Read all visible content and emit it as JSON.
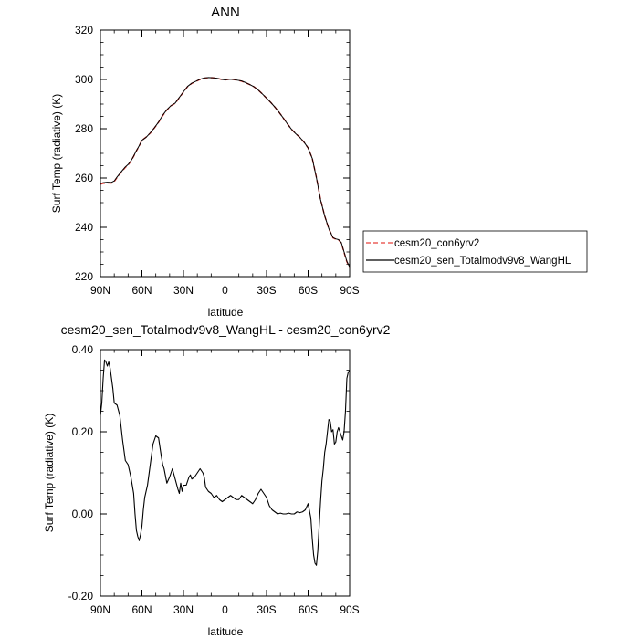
{
  "chart_data": [
    {
      "type": "line",
      "title": "ANN",
      "xlabel": "latitude",
      "ylabel": "Surf Temp (radiative) (K)",
      "xlim": [
        90,
        -90
      ],
      "ylim": [
        220,
        320
      ],
      "xticks": [
        90,
        60,
        30,
        0,
        -30,
        -60,
        -90
      ],
      "xtick_labels": [
        "90N",
        "60N",
        "30N",
        "0",
        "30S",
        "60S",
        "90S"
      ],
      "yticks": [
        220,
        240,
        260,
        280,
        300,
        320
      ],
      "ytick_labels": [
        "220",
        "240",
        "260",
        "280",
        "300",
        "320"
      ],
      "legend": {
        "placement": "right",
        "entries": [
          {
            "label": "cesm20_con6yrv2",
            "color": "#e8413a",
            "style": "dashed"
          },
          {
            "label": "cesm20_sen_Totalmodv9v8_WangHL",
            "color": "#000000",
            "style": "solid"
          }
        ]
      },
      "x": [
        90,
        88,
        85,
        82,
        80,
        78,
        75,
        72,
        70,
        68,
        66,
        64,
        62,
        60,
        57,
        54,
        51,
        48,
        45,
        42,
        39,
        36,
        33,
        30,
        27,
        24,
        21,
        18,
        15,
        12,
        9,
        6,
        3,
        0,
        -3,
        -6,
        -9,
        -12,
        -15,
        -18,
        -21,
        -24,
        -27,
        -30,
        -33,
        -36,
        -39,
        -42,
        -45,
        -48,
        -51,
        -54,
        -57,
        -60,
        -63,
        -66,
        -69,
        -72,
        -75,
        -78,
        -80,
        -82,
        -84,
        -86,
        -88,
        -90
      ],
      "series": [
        {
          "name": "cesm20_con6yrv2",
          "values": [
            257.5,
            257.8,
            258.0,
            257.9,
            258.6,
            260.2,
            262.3,
            264.3,
            265.3,
            266.8,
            268.8,
            271.0,
            273.0,
            275.3,
            276.6,
            278.2,
            280.3,
            282.6,
            285.3,
            287.6,
            289.3,
            290.3,
            292.6,
            294.9,
            297.1,
            298.4,
            299.2,
            300.0,
            300.5,
            300.7,
            300.7,
            300.5,
            300.1,
            299.8,
            300.1,
            300.0,
            299.7,
            299.3,
            298.6,
            297.9,
            297.0,
            295.7,
            294.1,
            292.4,
            290.7,
            288.8,
            286.7,
            284.4,
            282.0,
            279.8,
            278.0,
            276.5,
            274.6,
            272.2,
            268.0,
            260.3,
            251.3,
            244.6,
            239.4,
            235.7,
            235.2,
            234.9,
            233.6,
            229.8,
            226.0,
            223.6
          ]
        },
        {
          "name": "cesm20_sen_Totalmodv9v8_WangHL",
          "values": [
            257.7,
            258.1,
            258.3,
            258.2,
            258.8,
            260.4,
            262.5,
            264.5,
            265.5,
            266.9,
            268.9,
            271.1,
            273.1,
            275.3,
            276.5,
            278.3,
            280.4,
            282.7,
            285.5,
            287.7,
            289.4,
            290.4,
            292.7,
            295.0,
            297.2,
            298.5,
            299.3,
            300.1,
            300.6,
            300.8,
            300.7,
            300.5,
            300.1,
            299.8,
            300.1,
            300.0,
            299.7,
            299.4,
            298.7,
            297.9,
            297.0,
            295.7,
            294.1,
            292.4,
            290.7,
            288.8,
            286.7,
            284.4,
            282.0,
            279.8,
            278.0,
            276.5,
            274.6,
            272.2,
            268.0,
            260.2,
            251.2,
            244.6,
            239.4,
            235.8,
            235.3,
            235.0,
            233.8,
            230.0,
            226.2,
            223.9
          ]
        }
      ]
    },
    {
      "type": "line",
      "title": "cesm20_sen_Totalmodv9v8_WangHL - cesm20_con6yrv2",
      "xlabel": "latitude",
      "ylabel": "Surf Temp (radiative) (K)",
      "xlim": [
        90,
        -90
      ],
      "ylim": [
        -0.2,
        0.4
      ],
      "xticks": [
        90,
        60,
        30,
        0,
        -30,
        -60,
        -90
      ],
      "xtick_labels": [
        "90N",
        "60N",
        "30N",
        "0",
        "30S",
        "60S",
        "90S"
      ],
      "yticks": [
        -0.2,
        0.0,
        0.2,
        0.4
      ],
      "ytick_labels": [
        "-0.20",
        "0.00",
        "0.20",
        "0.40"
      ],
      "x": [
        90,
        89,
        88,
        87,
        86,
        85,
        84,
        83,
        82,
        81,
        80,
        78,
        76,
        74,
        72,
        70,
        68,
        66,
        65,
        64,
        63,
        62,
        61,
        60,
        59,
        58,
        56,
        54,
        52,
        50,
        48,
        46,
        45,
        44,
        42,
        40,
        38,
        36,
        34,
        33,
        32,
        31,
        30,
        28,
        27,
        26,
        25,
        24,
        22,
        20,
        18,
        16,
        15,
        14,
        12,
        10,
        8,
        6,
        4,
        2,
        0,
        -2,
        -4,
        -6,
        -8,
        -10,
        -12,
        -14,
        -16,
        -18,
        -20,
        -22,
        -24,
        -26,
        -28,
        -30,
        -32,
        -34,
        -36,
        -38,
        -40,
        -42,
        -44,
        -46,
        -48,
        -50,
        -52,
        -54,
        -56,
        -58,
        -60,
        -62,
        -63,
        -64,
        -65,
        -66,
        -67,
        -68,
        -69,
        -70,
        -71,
        -72,
        -73,
        -74,
        -75,
        -76,
        -77,
        -78,
        -79,
        -80,
        -81,
        -82,
        -83,
        -84,
        -85,
        -86,
        -87,
        -88,
        -89,
        -90
      ],
      "series": [
        {
          "name": "",
          "values": [
            0.24,
            0.27,
            0.33,
            0.375,
            0.37,
            0.36,
            0.37,
            0.355,
            0.33,
            0.305,
            0.27,
            0.265,
            0.24,
            0.18,
            0.13,
            0.12,
            0.09,
            0.05,
            0.0,
            -0.04,
            -0.055,
            -0.065,
            -0.05,
            -0.03,
            0.01,
            0.04,
            0.07,
            0.12,
            0.17,
            0.19,
            0.185,
            0.14,
            0.12,
            0.11,
            0.075,
            0.09,
            0.11,
            0.085,
            0.06,
            0.05,
            0.075,
            0.055,
            0.07,
            0.07,
            0.08,
            0.09,
            0.095,
            0.085,
            0.09,
            0.1,
            0.11,
            0.1,
            0.09,
            0.065,
            0.055,
            0.05,
            0.04,
            0.045,
            0.035,
            0.03,
            0.035,
            0.04,
            0.045,
            0.04,
            0.035,
            0.035,
            0.045,
            0.04,
            0.035,
            0.03,
            0.025,
            0.035,
            0.05,
            0.06,
            0.05,
            0.04,
            0.02,
            0.01,
            0.005,
            0.0,
            0.002,
            0.0,
            0.0,
            0.002,
            0.0,
            0.0,
            0.005,
            0.003,
            0.005,
            0.01,
            0.025,
            -0.01,
            -0.06,
            -0.1,
            -0.12,
            -0.125,
            -0.09,
            -0.03,
            0.03,
            0.08,
            0.11,
            0.15,
            0.17,
            0.2,
            0.23,
            0.225,
            0.2,
            0.205,
            0.17,
            0.175,
            0.2,
            0.21,
            0.2,
            0.19,
            0.18,
            0.2,
            0.25,
            0.33,
            0.345,
            0.35
          ]
        }
      ]
    }
  ]
}
